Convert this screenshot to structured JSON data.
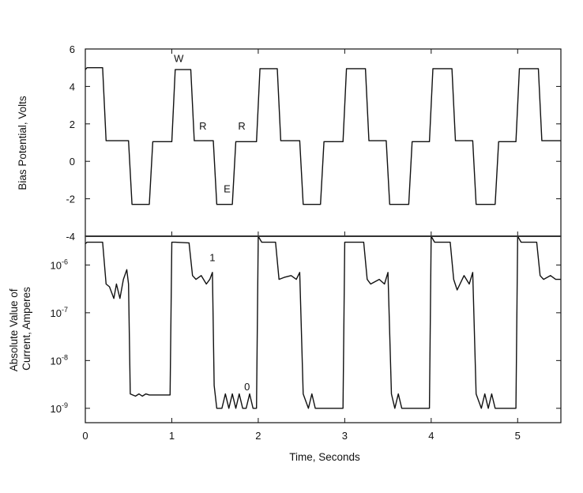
{
  "chart_data": [
    {
      "type": "line",
      "panel": "top",
      "xlabel": "Time, Seconds",
      "ylabel": "Bias Potential, Volts",
      "xlim": [
        0,
        5.5
      ],
      "ylim": [
        -4,
        6
      ],
      "yticks": [
        {
          "value": 6,
          "label": "6"
        },
        {
          "value": 4,
          "label": "4"
        },
        {
          "value": 2,
          "label": "2"
        },
        {
          "value": 0,
          "label": "0"
        },
        {
          "value": -2,
          "label": "-2"
        },
        {
          "value": -4,
          "label": "-4"
        }
      ],
      "grid": false,
      "series": [
        {
          "x": [
            0,
            0.02,
            0.2,
            0.24,
            0.5,
            0.54,
            0.74,
            0.78,
            1.0,
            1.04,
            1.22,
            1.26,
            1.48,
            1.52,
            1.7,
            1.74,
            1.98,
            2.02,
            2.22,
            2.26,
            2.48,
            2.52,
            2.72,
            2.76,
            2.98,
            3.02,
            3.24,
            3.28,
            3.48,
            3.52,
            3.74,
            3.78,
            3.98,
            4.02,
            4.24,
            4.28,
            4.48,
            4.52,
            4.74,
            4.78,
            4.98,
            5.02,
            5.24,
            5.28,
            5.5
          ],
          "y": [
            4.9,
            5.0,
            5.0,
            1.1,
            1.1,
            -2.3,
            -2.3,
            1.05,
            1.05,
            4.9,
            4.9,
            1.1,
            1.1,
            -2.3,
            -2.3,
            1.05,
            1.05,
            4.95,
            4.95,
            1.1,
            1.1,
            -2.3,
            -2.3,
            1.05,
            1.05,
            4.95,
            4.95,
            1.1,
            1.1,
            -2.3,
            -2.3,
            1.05,
            1.05,
            4.95,
            4.95,
            1.1,
            1.1,
            -2.3,
            -2.3,
            1.05,
            1.05,
            4.95,
            4.95,
            1.1,
            1.1
          ]
        }
      ],
      "annotations": [
        {
          "text": "W",
          "x": 1.08,
          "y": 5.3
        },
        {
          "text": "R",
          "x": 1.36,
          "y": 1.7
        },
        {
          "text": "R",
          "x": 1.81,
          "y": 1.7
        },
        {
          "text": "E",
          "x": 1.64,
          "y": -1.65
        }
      ]
    },
    {
      "type": "line",
      "panel": "bottom",
      "xlabel": "Time, Seconds",
      "ylabel": "Absolute Value of Current, Amperes",
      "xlim": [
        0,
        5.5
      ],
      "ylim": [
        5e-10,
        4e-06
      ],
      "yscale": "log",
      "yticks": [
        {
          "value": 1e-06,
          "base": "10",
          "exp": "-6"
        },
        {
          "value": 1e-07,
          "base": "10",
          "exp": "-7"
        },
        {
          "value": 1e-08,
          "base": "10",
          "exp": "-8"
        },
        {
          "value": 1e-09,
          "base": "10",
          "exp": "-9"
        }
      ],
      "xticks": [
        0,
        1,
        2,
        3,
        4,
        5
      ],
      "grid": false,
      "series": [
        {
          "x": [
            0,
            0.02,
            0.2,
            0.24,
            0.28,
            0.33,
            0.36,
            0.4,
            0.44,
            0.48,
            0.5,
            0.52,
            0.58,
            0.62,
            0.66,
            0.7,
            0.74,
            0.98,
            1.0,
            1.04,
            1.2,
            1.24,
            1.28,
            1.34,
            1.4,
            1.44,
            1.47,
            1.49,
            1.52,
            1.58,
            1.62,
            1.66,
            1.7,
            1.74,
            1.78,
            1.82,
            1.86,
            1.9,
            1.94,
            1.98,
            2.0,
            2.04,
            2.2,
            2.24,
            2.3,
            2.38,
            2.44,
            2.48,
            2.52,
            2.58,
            2.62,
            2.66,
            2.7,
            2.74,
            2.98,
            3.0,
            3.04,
            3.22,
            3.26,
            3.3,
            3.4,
            3.46,
            3.5,
            3.54,
            3.58,
            3.62,
            3.66,
            3.7,
            3.74,
            3.98,
            4.0,
            4.04,
            4.22,
            4.26,
            4.3,
            4.38,
            4.44,
            4.48,
            4.52,
            4.58,
            4.62,
            4.66,
            4.7,
            4.74,
            4.98,
            5.0,
            5.04,
            5.22,
            5.26,
            5.3,
            5.38,
            5.44,
            5.5
          ],
          "y": [
            2.8e-06,
            3e-06,
            3e-06,
            4e-07,
            3.5e-07,
            2e-07,
            4e-07,
            2e-07,
            5e-07,
            8e-07,
            4e-07,
            2e-09,
            1.8e-09,
            2e-09,
            1.8e-09,
            2e-09,
            1.9e-09,
            1.9e-09,
            3e-06,
            3e-06,
            2.9e-06,
            6e-07,
            5e-07,
            6e-07,
            4e-07,
            5e-07,
            7e-07,
            3e-09,
            1e-09,
            1e-09,
            2e-09,
            1e-09,
            2e-09,
            1e-09,
            2e-09,
            1e-09,
            1e-09,
            2e-09,
            1e-09,
            1e-09,
            4e-06,
            3e-06,
            3e-06,
            5e-07,
            5.5e-07,
            6e-07,
            5e-07,
            7e-07,
            2e-09,
            1e-09,
            2e-09,
            1e-09,
            1e-09,
            1e-09,
            1e-09,
            3e-06,
            3e-06,
            3e-06,
            5e-07,
            4e-07,
            5e-07,
            4e-07,
            7e-07,
            2e-09,
            1e-09,
            2e-09,
            1e-09,
            1e-09,
            1e-09,
            1e-09,
            4e-06,
            3e-06,
            3e-06,
            5e-07,
            3e-07,
            6e-07,
            4e-07,
            7e-07,
            2e-09,
            1e-09,
            2e-09,
            1e-09,
            2e-09,
            1e-09,
            1e-09,
            4e-06,
            3e-06,
            3e-06,
            6e-07,
            5e-07,
            6e-07,
            5e-07,
            5e-07
          ]
        }
      ],
      "annotations": [
        {
          "text": "1",
          "x": 1.47,
          "y": 1.2e-06
        },
        {
          "text": "0",
          "x": 1.87,
          "y": 2.4e-09
        }
      ]
    }
  ]
}
